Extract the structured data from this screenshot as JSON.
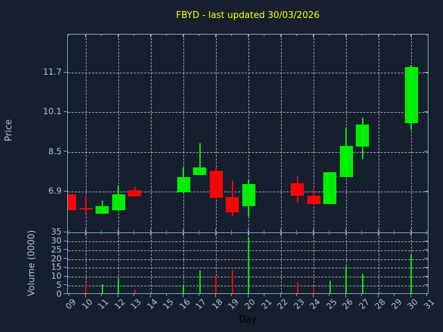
{
  "title": {
    "text": "FBYD - last updated 30/03/2026",
    "color": "#ffff00"
  },
  "colors": {
    "background": "#151f2e",
    "spine": "#85aad2",
    "tick_label": "#b0c4de",
    "grid": "rgba(205,211,218,0.8)",
    "up": "#00ee00",
    "down": "#f70505",
    "title": "#ffff00",
    "x_axis_label": "#000000"
  },
  "price_axis": {
    "label": "Price",
    "ticks": [
      6.9,
      8.5,
      10.1,
      11.7
    ]
  },
  "volume_axis": {
    "label": "Volume (0000)",
    "ticks": [
      0,
      5,
      10,
      15,
      20,
      25,
      30,
      35
    ]
  },
  "x_axis": {
    "label": "Day",
    "tick_labels": [
      "09",
      "10",
      "11",
      "12",
      "13",
      "14",
      "15",
      "16",
      "17",
      "18",
      "19",
      "20",
      "21",
      "22",
      "23",
      "24",
      "25",
      "26",
      "27",
      "28",
      "29",
      "30",
      "31"
    ],
    "first_day": 9,
    "last_day": 31,
    "gridline_days": [
      10,
      12,
      14,
      16,
      18,
      20,
      22,
      24,
      26,
      28,
      30
    ]
  },
  "chart_data": {
    "type": "candlestick",
    "symbol": "FBYD",
    "title": "FBYD - last updated 30/03/2026",
    "xlabel": "Day",
    "ylabel_price": "Price",
    "ylabel_volume": "Volume (0000)",
    "grid": "dashed",
    "price_ylim": [
      5.2,
      13.25
    ],
    "volume_ylim": [
      0,
      35.4
    ],
    "ohlcv": [
      {
        "day": 9,
        "open": 6.79,
        "high": 6.79,
        "low": 6.15,
        "close": 6.15,
        "volume": 0
      },
      {
        "day": 10,
        "open": 6.23,
        "high": 6.71,
        "low": 6.04,
        "close": 6.2,
        "volume": 6
      },
      {
        "day": 11,
        "open": 6.0,
        "high": 6.53,
        "low": 6.0,
        "close": 6.3,
        "volume": 5.5
      },
      {
        "day": 12,
        "open": 6.15,
        "high": 7.16,
        "low": 6.15,
        "close": 6.79,
        "volume": 9
      },
      {
        "day": 13,
        "open": 6.95,
        "high": 7.09,
        "low": 6.71,
        "close": 6.71,
        "volume": 2.5
      },
      {
        "day": 16,
        "open": 6.87,
        "high": 7.88,
        "low": 6.85,
        "close": 7.48,
        "volume": 5.5
      },
      {
        "day": 17,
        "open": 7.56,
        "high": 8.86,
        "low": 7.56,
        "close": 7.88,
        "volume": 13.5
      },
      {
        "day": 18,
        "open": 7.74,
        "high": 7.88,
        "low": 6.64,
        "close": 6.64,
        "volume": 10.5
      },
      {
        "day": 19,
        "open": 6.67,
        "high": 7.35,
        "low": 5.93,
        "close": 6.07,
        "volume": 14
      },
      {
        "day": 20,
        "open": 6.3,
        "high": 7.37,
        "low": 5.9,
        "close": 7.21,
        "volume": 32.5
      },
      {
        "day": 23,
        "open": 7.23,
        "high": 7.55,
        "low": 6.44,
        "close": 6.72,
        "volume": 7
      },
      {
        "day": 24,
        "open": 6.72,
        "high": 7.01,
        "low": 6.39,
        "close": 6.39,
        "volume": 4.5
      },
      {
        "day": 25,
        "open": 6.39,
        "high": 7.69,
        "low": 6.39,
        "close": 7.69,
        "volume": 7.5
      },
      {
        "day": 26,
        "open": 7.48,
        "high": 9.5,
        "low": 7.48,
        "close": 8.73,
        "volume": 16
      },
      {
        "day": 27,
        "open": 8.71,
        "high": 9.89,
        "low": 8.2,
        "close": 9.61,
        "volume": 11.5
      },
      {
        "day": 30,
        "open": 9.65,
        "high": 12.01,
        "low": 9.38,
        "close": 11.93,
        "volume": 22.5
      }
    ]
  }
}
